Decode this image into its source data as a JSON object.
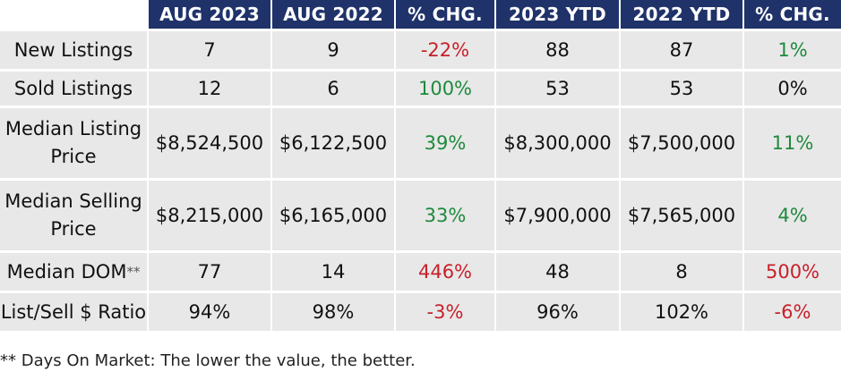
{
  "headers": [
    "",
    "AUG 2023",
    "AUG 2022",
    "% CHG.",
    "2023 YTD",
    "2022 YTD",
    "% CHG."
  ],
  "rows": [
    {
      "label": "New Listings",
      "cells": [
        {
          "text": "7",
          "tone": "neu"
        },
        {
          "text": "9",
          "tone": "neu"
        },
        {
          "text": "-22%",
          "tone": "neg"
        },
        {
          "text": "88",
          "tone": "neu"
        },
        {
          "text": "87",
          "tone": "neu"
        },
        {
          "text": "1%",
          "tone": "pos"
        }
      ]
    },
    {
      "label": "Sold Listings",
      "cells": [
        {
          "text": "12",
          "tone": "neu"
        },
        {
          "text": "6",
          "tone": "neu"
        },
        {
          "text": "100%",
          "tone": "pos"
        },
        {
          "text": "53",
          "tone": "neu"
        },
        {
          "text": "53",
          "tone": "neu"
        },
        {
          "text": "0%",
          "tone": "neu"
        }
      ]
    },
    {
      "label": "Median Listing Price",
      "cells": [
        {
          "text": "$8,524,500",
          "tone": "neu"
        },
        {
          "text": "$6,122,500",
          "tone": "neu"
        },
        {
          "text": "39%",
          "tone": "pos"
        },
        {
          "text": "$8,300,000",
          "tone": "neu"
        },
        {
          "text": "$7,500,000",
          "tone": "neu"
        },
        {
          "text": "11%",
          "tone": "pos"
        }
      ]
    },
    {
      "label": "Median Selling Price",
      "cells": [
        {
          "text": "$8,215,000",
          "tone": "neu"
        },
        {
          "text": "$6,165,000",
          "tone": "neu"
        },
        {
          "text": "33%",
          "tone": "pos"
        },
        {
          "text": "$7,900,000",
          "tone": "neu"
        },
        {
          "text": "$7,565,000",
          "tone": "neu"
        },
        {
          "text": "4%",
          "tone": "pos"
        }
      ]
    },
    {
      "label": "Median DOM",
      "label_mark": "**",
      "cells": [
        {
          "text": "77",
          "tone": "neu"
        },
        {
          "text": "14",
          "tone": "neu"
        },
        {
          "text": "446%",
          "tone": "neg"
        },
        {
          "text": "48",
          "tone": "neu"
        },
        {
          "text": "8",
          "tone": "neu"
        },
        {
          "text": "500%",
          "tone": "neg"
        }
      ]
    },
    {
      "label": "List/Sell $ Ratio",
      "cells": [
        {
          "text": "94%",
          "tone": "neu"
        },
        {
          "text": "98%",
          "tone": "neu"
        },
        {
          "text": "-3%",
          "tone": "neg"
        },
        {
          "text": "96%",
          "tone": "neu"
        },
        {
          "text": "102%",
          "tone": "neu"
        },
        {
          "text": "-6%",
          "tone": "neg"
        }
      ]
    }
  ],
  "footnote": "** Days On Market: The lower the value, the better.",
  "colors": {
    "header_bg": "#1f3269",
    "cell_bg": "#e8e8e8",
    "negative": "#c8202a",
    "positive": "#1e8a3c"
  }
}
